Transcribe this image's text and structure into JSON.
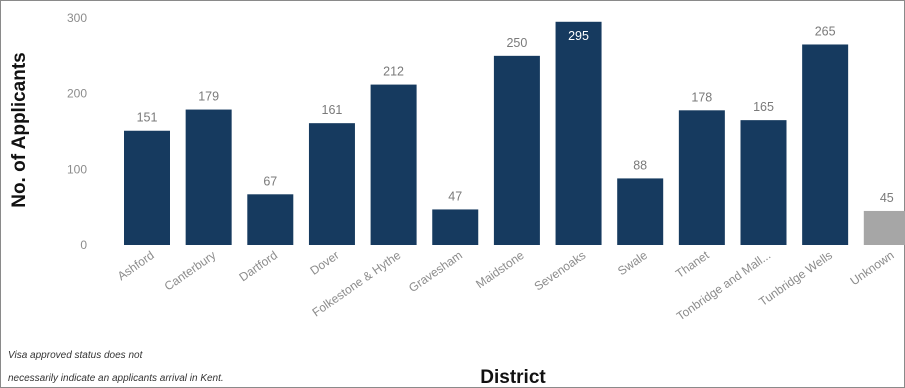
{
  "chart_data": {
    "type": "bar",
    "title": "",
    "xlabel": "District",
    "ylabel": "No. of Applicants",
    "ylim": [
      0,
      300
    ],
    "yticks": [
      0,
      100,
      200,
      300
    ],
    "grid": false,
    "categories": [
      "Ashford",
      "Canterbury",
      "Dartford",
      "Dover",
      "Folkestone & Hythe",
      "Gravesham",
      "Maidstone",
      "Sevenoaks",
      "Swale",
      "Thanet",
      "Tonbridge and Mall...",
      "Tunbridge Wells",
      "Unknown"
    ],
    "values": [
      151,
      179,
      67,
      161,
      212,
      47,
      250,
      295,
      88,
      178,
      165,
      265,
      45
    ],
    "colors": {
      "default": "#163a5f",
      "unknown": "#a6a6a6"
    }
  },
  "footnote": {
    "line1": "Visa approved status does not",
    "line2": "necessarily indicate an applicants arrival in Kent."
  }
}
